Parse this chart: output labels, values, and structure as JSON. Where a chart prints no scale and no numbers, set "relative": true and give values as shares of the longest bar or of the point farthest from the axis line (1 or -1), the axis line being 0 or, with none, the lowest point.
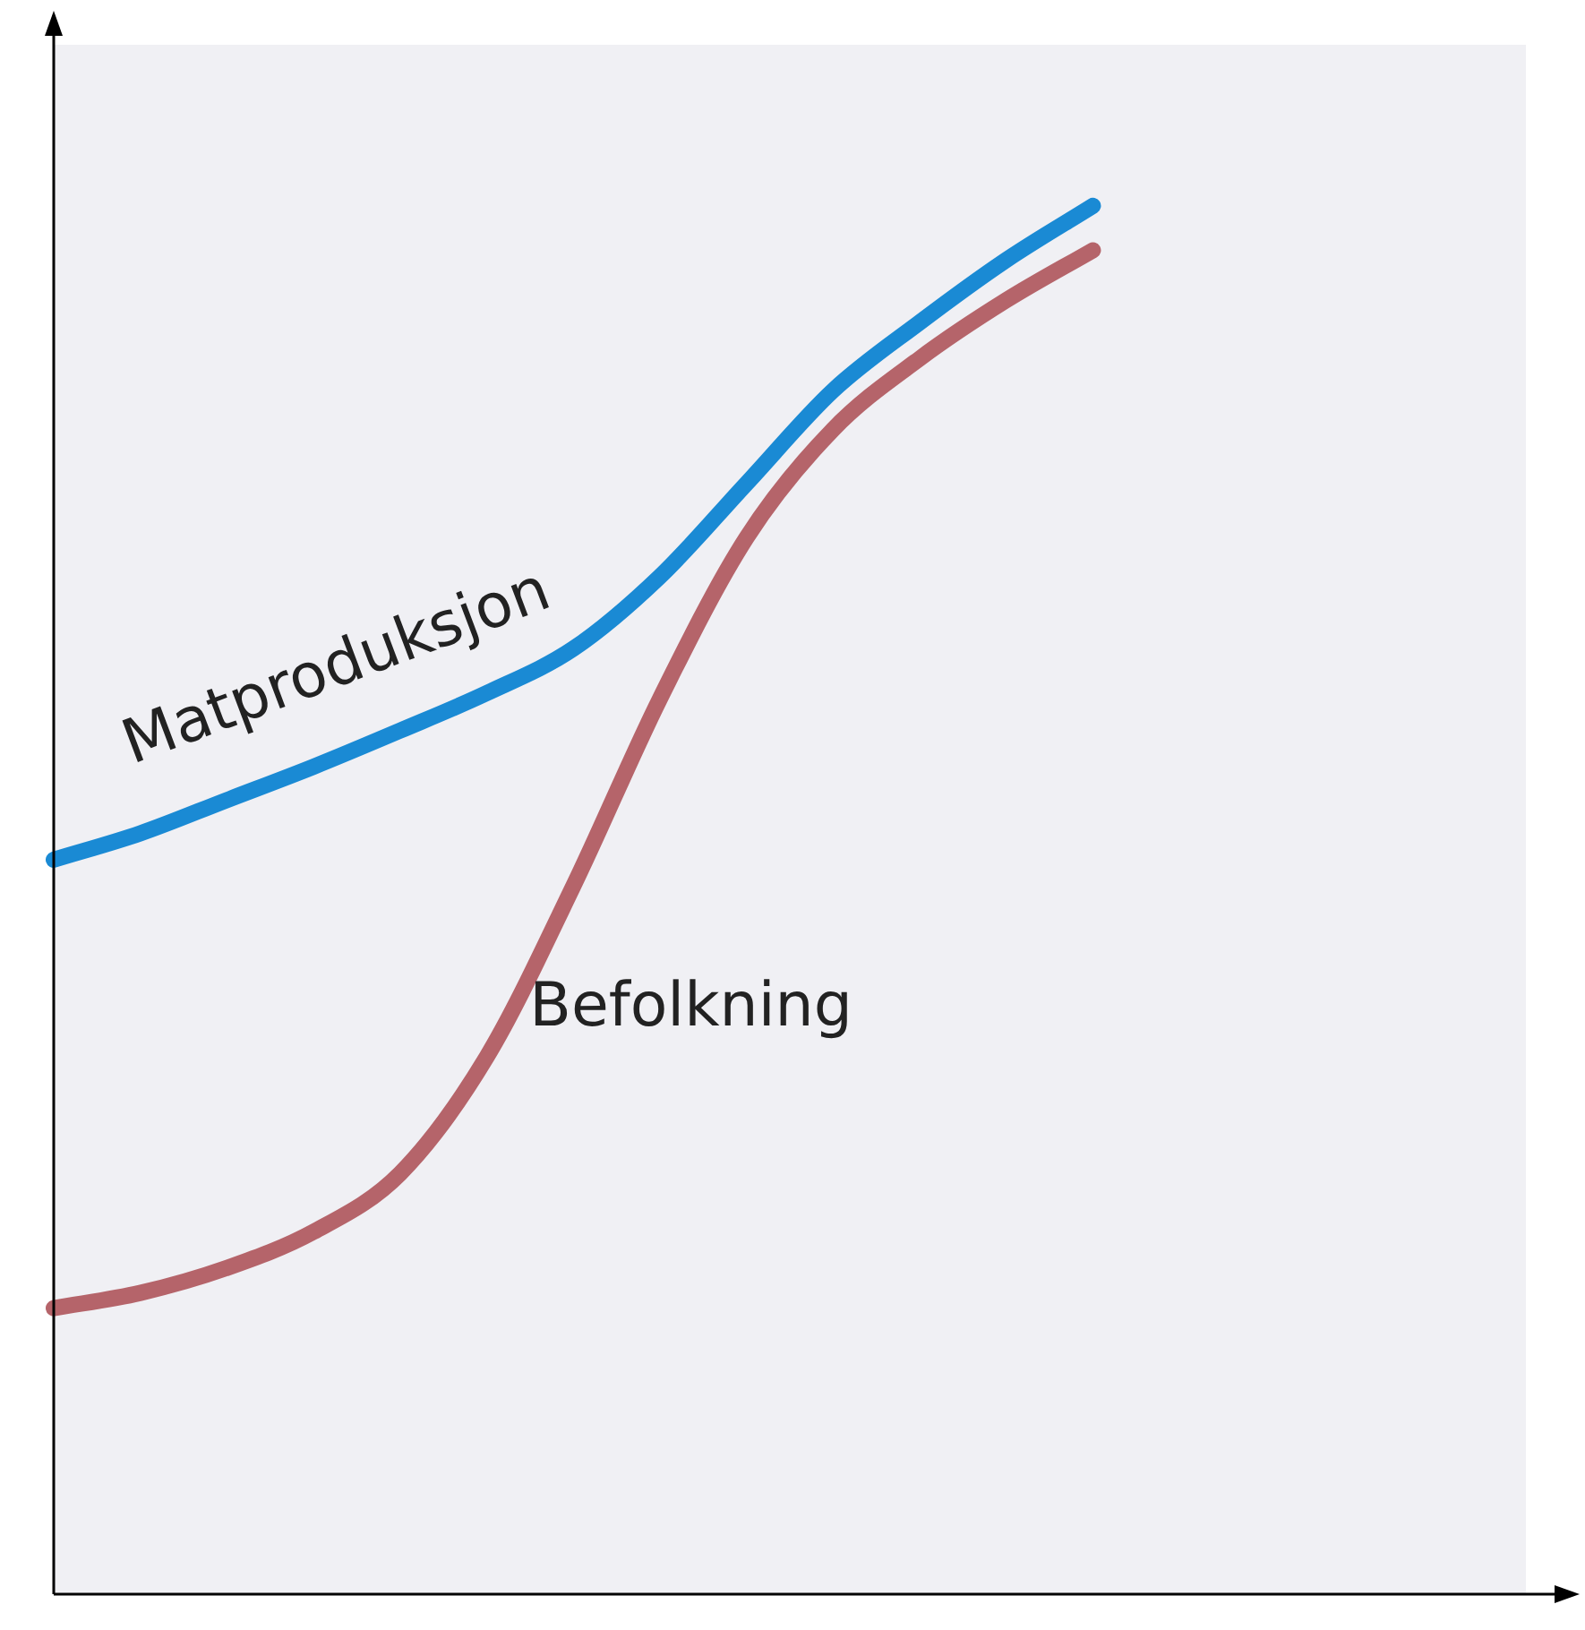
{
  "chart_data": {
    "type": "line",
    "relative": true,
    "categories": [
      null,
      null,
      null,
      null,
      null,
      null,
      null,
      null,
      null,
      null,
      null,
      null,
      null,
      null,
      null,
      null,
      null,
      null
    ],
    "series": [
      {
        "name": "Matproduksjon",
        "color": "#1a8ad4",
        "values": [
          0.529,
          0.548,
          0.572,
          0.596,
          0.622,
          0.649,
          0.681,
          0.733,
          0.8,
          0.867,
          0.916,
          0.961,
          1,
          null,
          null,
          null,
          null,
          null
        ]
      },
      {
        "name": "Befolkning",
        "color": "#b5646a",
        "values": [
          0.206,
          0.217,
          0.235,
          0.261,
          0.303,
          0.387,
          0.51,
          0.645,
          0.761,
          0.839,
          0.89,
          0.932,
          0.968,
          null,
          null,
          null,
          null,
          null
        ]
      }
    ],
    "legend": false,
    "marker": "none",
    "line_style": "solid"
  }
}
